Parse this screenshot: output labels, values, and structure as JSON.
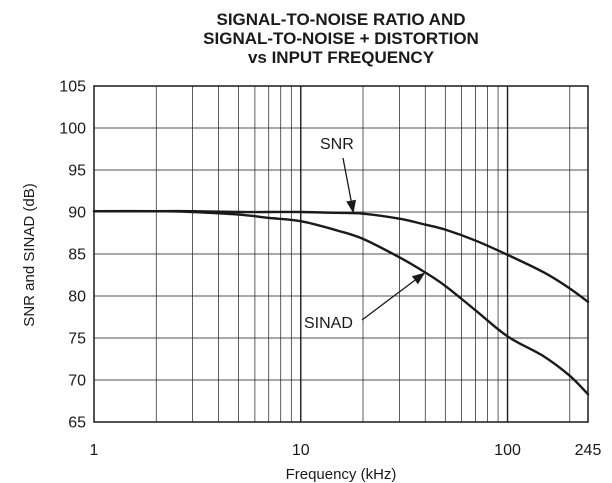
{
  "chart_data": {
    "type": "line",
    "title": [
      "SIGNAL-TO-NOISE RATIO AND",
      "SIGNAL-TO-NOISE + DISTORTION",
      "vs INPUT FREQUENCY"
    ],
    "xlabel": "Frequency (kHz)",
    "ylabel": "SNR and SINAD (dB)",
    "x_scale": "log",
    "xlim": [
      1,
      245
    ],
    "ylim": [
      65,
      105
    ],
    "x_tick_labels": [
      {
        "value": 1,
        "label": "1"
      },
      {
        "value": 10,
        "label": "10"
      },
      {
        "value": 100,
        "label": "100"
      },
      {
        "value": 245,
        "label": "245"
      }
    ],
    "y_ticks": [
      65,
      70,
      75,
      80,
      85,
      90,
      95,
      100,
      105
    ],
    "grid": true,
    "series": [
      {
        "name": "SNR",
        "x": [
          1,
          2,
          3,
          5,
          7,
          10,
          15,
          20,
          30,
          40,
          50,
          70,
          100,
          150,
          200,
          245
        ],
        "y": [
          90.1,
          90.1,
          90.1,
          90.0,
          90.0,
          90.0,
          89.9,
          89.8,
          89.2,
          88.5,
          87.9,
          86.6,
          84.9,
          82.8,
          80.9,
          79.3
        ]
      },
      {
        "name": "SINAD",
        "x": [
          1,
          2,
          3,
          5,
          7,
          10,
          15,
          20,
          30,
          40,
          50,
          70,
          100,
          150,
          200,
          245
        ],
        "y": [
          90.1,
          90.1,
          90.0,
          89.7,
          89.3,
          88.9,
          87.8,
          86.8,
          84.6,
          82.8,
          81.2,
          78.3,
          75.2,
          72.8,
          70.5,
          68.3
        ]
      }
    ],
    "annotations": [
      {
        "text": "SNR",
        "series": "SNR"
      },
      {
        "text": "SINAD",
        "series": "SINAD"
      }
    ],
    "colors": {
      "line": "#1a1a1a",
      "grid": "#1a1a1a",
      "background": "#ffffff"
    }
  }
}
